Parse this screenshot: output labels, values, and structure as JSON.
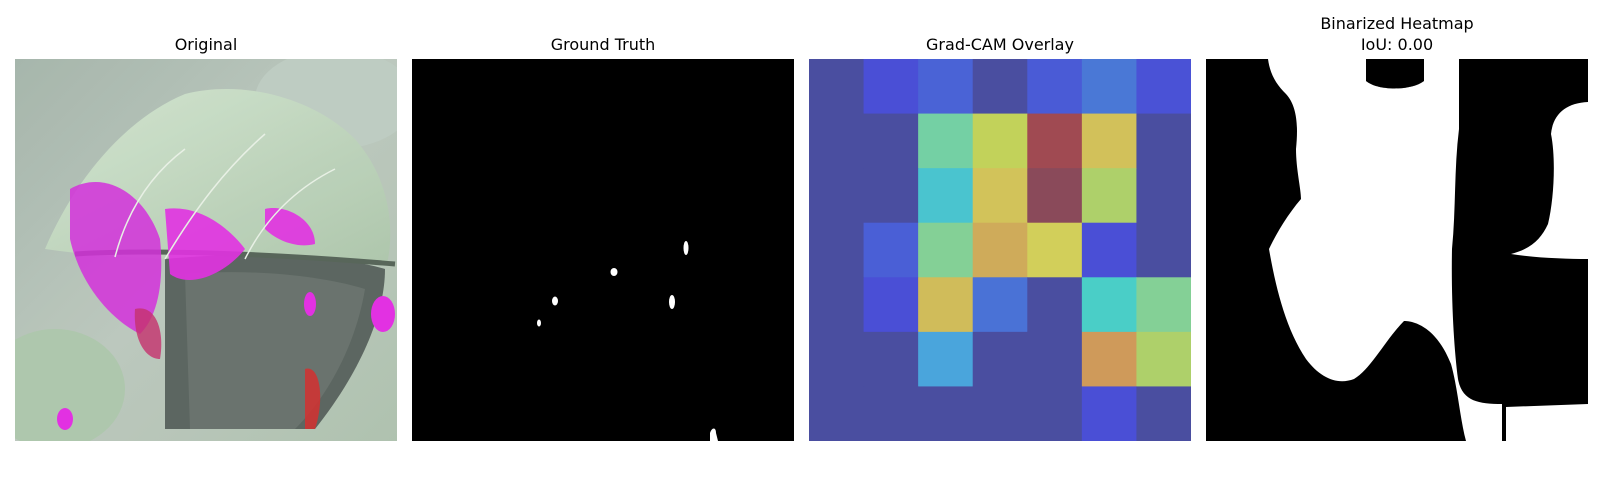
{
  "panels": {
    "original": {
      "title": "Original"
    },
    "ground_truth": {
      "title": "Ground Truth"
    },
    "gradcam": {
      "title": "Grad-CAM Overlay",
      "colors": [
        [
          "#4a4ea0",
          "#4a4fd6",
          "#4a63d6",
          "#4a4ea0",
          "#4a5bd6",
          "#4a78d6",
          "#4a52d6"
        ],
        [
          "#4a4ea0",
          "#4a4ea0",
          "#74d0a4",
          "#c2d25a",
          "#a04a52",
          "#d2c15a",
          "#4a4ea0"
        ],
        [
          "#4a4ea0",
          "#4a4ea0",
          "#4ac4cf",
          "#d2c35a",
          "#8a4a5a",
          "#aed06a",
          "#4a4ea0"
        ],
        [
          "#4a4ea0",
          "#4a5fd6",
          "#84d096",
          "#cfab5a",
          "#d2cf5a",
          "#4a4fd6",
          "#4a4ea0"
        ],
        [
          "#4a4ea0",
          "#4a4fd6",
          "#d0bc5a",
          "#4a72d6",
          "#4a4ea0",
          "#4acec7",
          "#84d096"
        ],
        [
          "#4a4ea0",
          "#4a4ea0",
          "#4aa5dc",
          "#4a4ea0",
          "#4a4ea0",
          "#cf9a5a",
          "#aed06a"
        ],
        [
          "#4a4ea0",
          "#4a4ea0",
          "#4a4ea0",
          "#4a4ea0",
          "#4a4ea0",
          "#4a4fd6",
          "#4a4ea0"
        ]
      ]
    },
    "binarized": {
      "title_line1": "Binarized Heatmap",
      "title_line2": "IoU: 0.00"
    }
  }
}
